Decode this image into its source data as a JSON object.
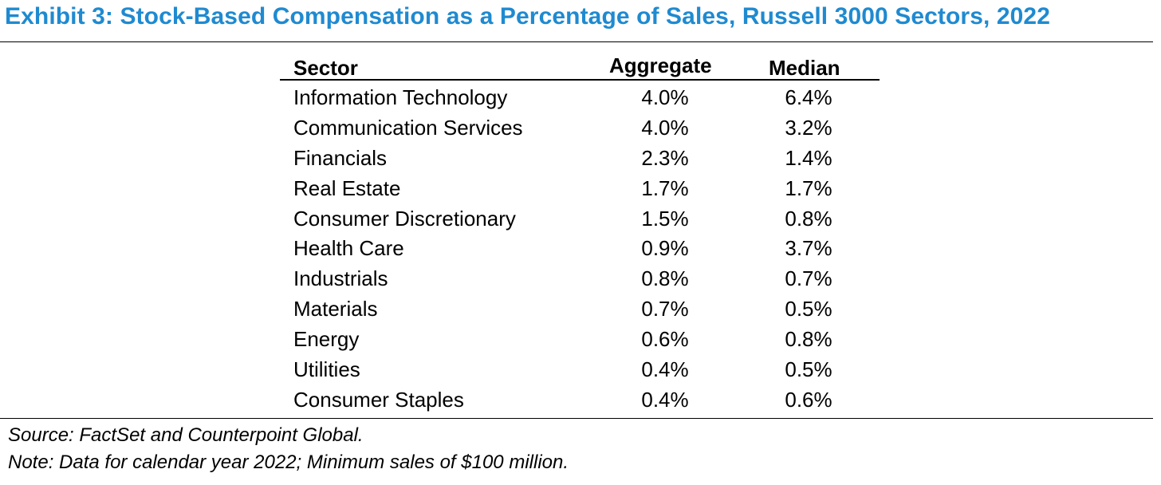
{
  "title": "Exhibit 3: Stock-Based Compensation as a Percentage of Sales, Russell 3000 Sectors, 2022",
  "colors": {
    "title": "#1f8ad0",
    "text": "#000000",
    "rules": "#000000"
  },
  "table": {
    "headers": {
      "sector": "Sector",
      "aggregate": "Aggregate",
      "median": "Median"
    },
    "rows": [
      {
        "sector": "Information Technology",
        "aggregate": "4.0%",
        "median": "6.4%"
      },
      {
        "sector": "Communication Services",
        "aggregate": "4.0%",
        "median": "3.2%"
      },
      {
        "sector": "Financials",
        "aggregate": "2.3%",
        "median": "1.4%"
      },
      {
        "sector": "Real Estate",
        "aggregate": "1.7%",
        "median": "1.7%"
      },
      {
        "sector": "Consumer Discretionary",
        "aggregate": "1.5%",
        "median": "0.8%"
      },
      {
        "sector": "Health Care",
        "aggregate": "0.9%",
        "median": "3.7%"
      },
      {
        "sector": "Industrials",
        "aggregate": "0.8%",
        "median": "0.7%"
      },
      {
        "sector": "Materials",
        "aggregate": "0.7%",
        "median": "0.5%"
      },
      {
        "sector": "Energy",
        "aggregate": "0.6%",
        "median": "0.8%"
      },
      {
        "sector": "Utilities",
        "aggregate": "0.4%",
        "median": "0.5%"
      },
      {
        "sector": "Consumer Staples",
        "aggregate": "0.4%",
        "median": "0.6%"
      }
    ]
  },
  "footnotes": {
    "source": "Source: FactSet and Counterpoint Global.",
    "note": "Note: Data for calendar year 2022; Minimum sales of $100 million."
  }
}
